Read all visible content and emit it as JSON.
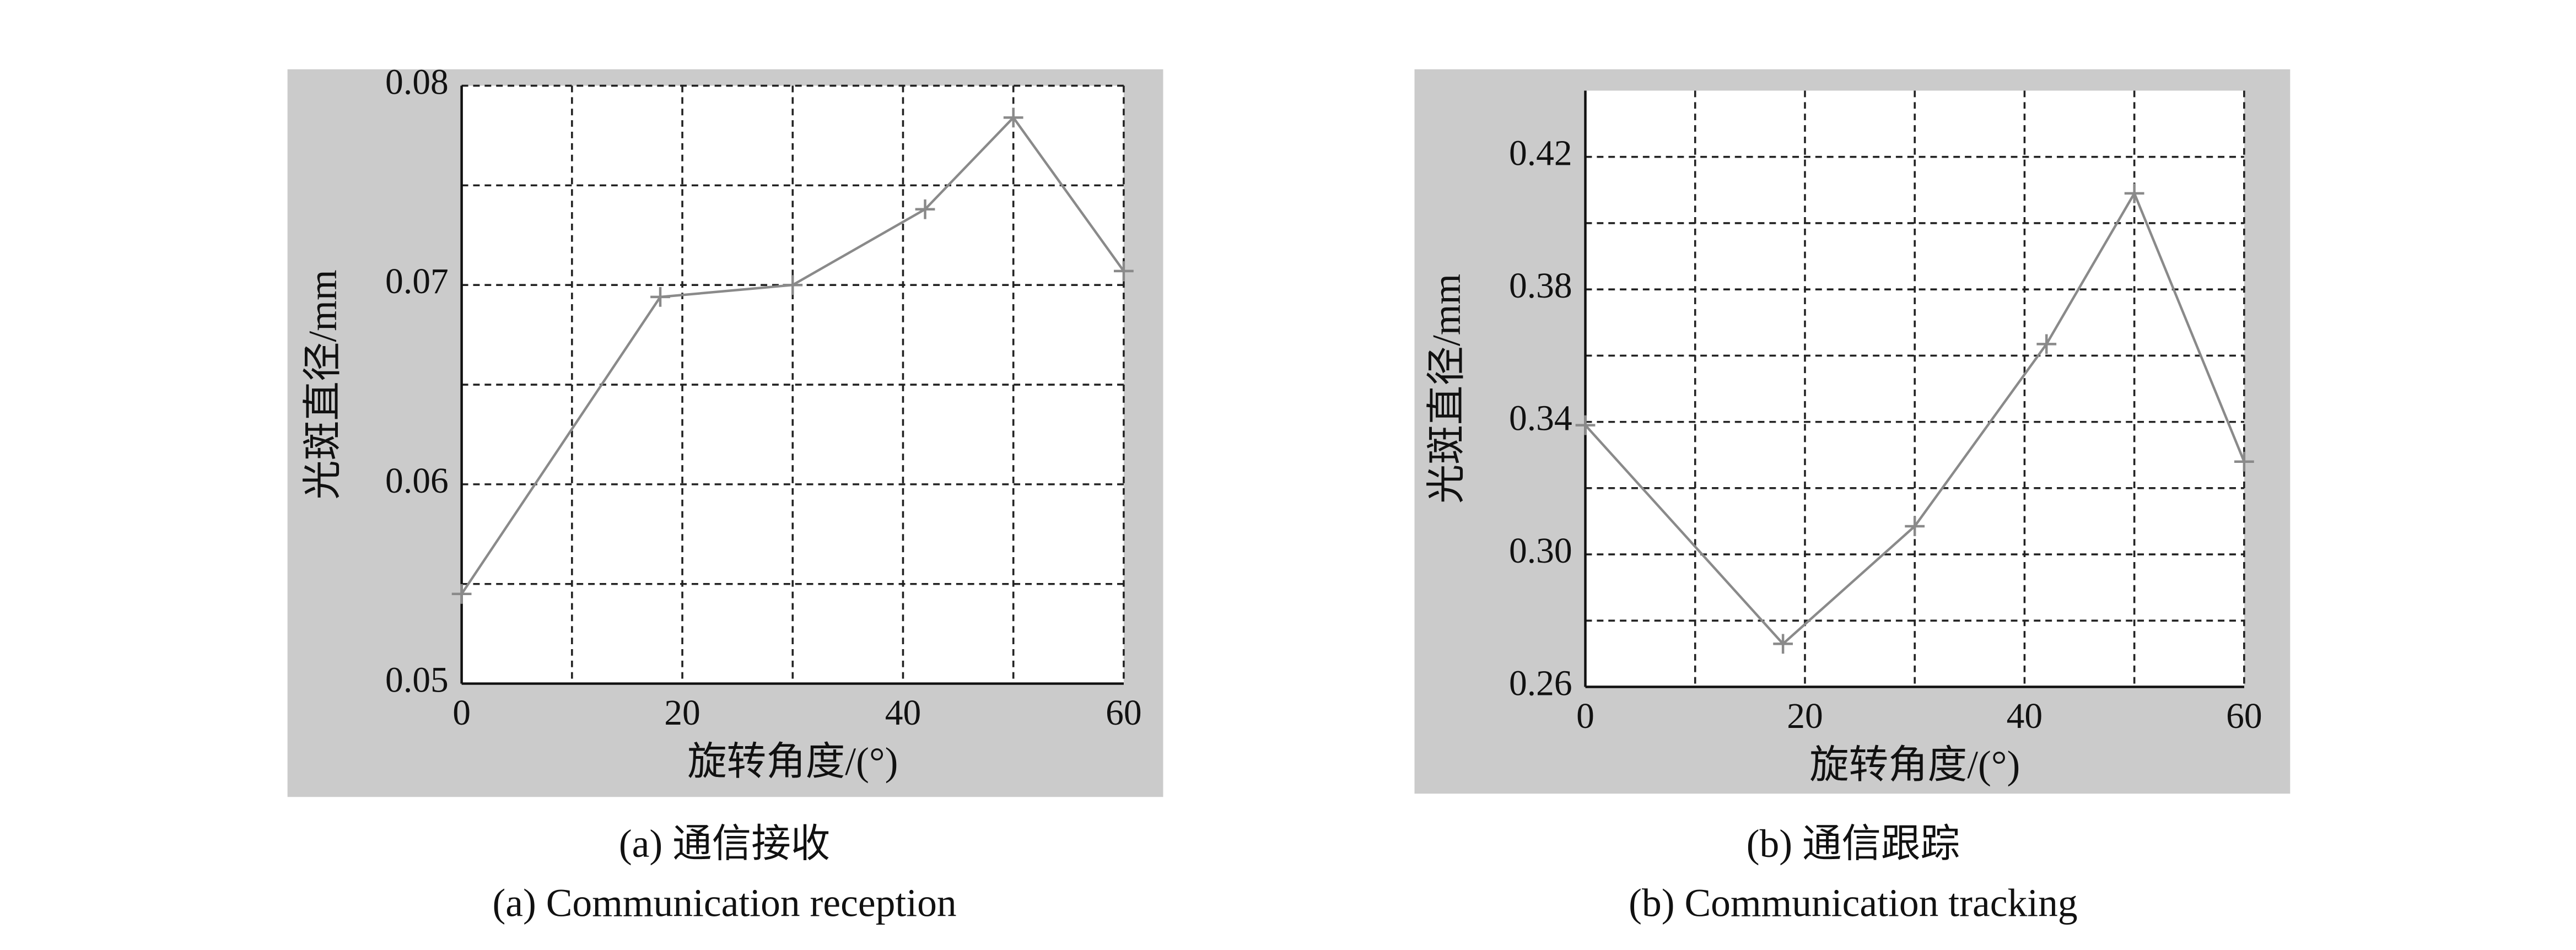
{
  "chart_data": [
    {
      "type": "line",
      "caption": "(a) 通信接收",
      "caption_en": "(a) Communication reception",
      "x_label": "旋转角度/(°)",
      "y_label": "光斑直径/mm",
      "x": [
        0,
        18,
        30,
        42,
        50,
        60
      ],
      "values": [
        0.0545,
        0.0694,
        0.07,
        0.0738,
        0.0784,
        0.0707
      ],
      "color": "#8a8a8a",
      "xlim": [
        0,
        60
      ],
      "xticks": [
        0,
        20,
        40,
        60
      ],
      "ylim": [
        0.05,
        0.08
      ],
      "yticks": [
        0.05,
        0.06,
        0.07,
        0.08
      ],
      "grid": true,
      "minor_grid": true
    },
    {
      "type": "line",
      "caption": "(b) 通信跟踪",
      "caption_en": "(b) Communication tracking",
      "x_label": "旋转角度/(°)",
      "y_label": "光斑直径/mm",
      "x": [
        0,
        18,
        30,
        42,
        50,
        60
      ],
      "values": [
        0.339,
        0.273,
        0.3085,
        0.3635,
        0.409,
        0.328
      ],
      "color": "#8a8a8a",
      "xlim": [
        0,
        60
      ],
      "xticks": [
        0,
        20,
        40,
        60
      ],
      "ylim": [
        0.26,
        0.44
      ],
      "yticks": [
        0.26,
        {
          "value": 0.3,
          "label": "0.30"
        },
        0.34,
        0.38,
        0.42
      ],
      "grid": true,
      "minor_grid": true
    }
  ]
}
